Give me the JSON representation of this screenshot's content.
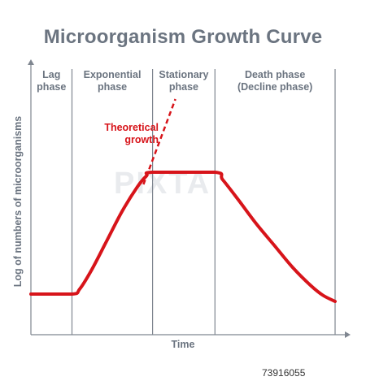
{
  "title": "Microorganism Growth Curve",
  "watermark": "PIXTA",
  "stock_id": "73916055",
  "colors": {
    "curve": "#d7141a",
    "text": "#6b7480",
    "axis": "#7f8690"
  },
  "chart_data": {
    "type": "line",
    "title": "Microorganism Growth Curve",
    "xlabel": "Time",
    "ylabel": "Log of numbers of microorganisms",
    "xlim": [
      0,
      100
    ],
    "ylim": [
      0,
      100
    ],
    "grid": false,
    "phases": [
      {
        "lines": [
          "Lag",
          "phase"
        ],
        "start": 0,
        "end": 13.5
      },
      {
        "lines": [
          "Exponential",
          "phase"
        ],
        "start": 13.5,
        "end": 40
      },
      {
        "lines": [
          "Stationary",
          "phase"
        ],
        "start": 40,
        "end": 60.5
      },
      {
        "lines": [
          "Death phase",
          "(Decline phase)"
        ],
        "start": 60.5,
        "end": 100
      }
    ],
    "series": [
      {
        "values": [
          [
            0,
            14
          ],
          [
            13.5,
            14
          ],
          [
            16,
            16
          ],
          [
            20,
            24
          ],
          [
            25,
            36
          ],
          [
            30,
            48
          ],
          [
            35,
            58
          ],
          [
            38,
            62.5
          ],
          [
            40,
            64
          ],
          [
            60.5,
            64
          ],
          [
            63,
            61
          ],
          [
            68,
            53
          ],
          [
            74,
            43
          ],
          [
            80,
            34
          ],
          [
            86,
            25
          ],
          [
            92,
            17.5
          ],
          [
            96,
            13.5
          ],
          [
            100,
            11
          ]
        ]
      }
    ],
    "theoretical": {
      "values": [
        [
          37,
          59
        ],
        [
          47.5,
          94
        ]
      ]
    },
    "annotations": [
      {
        "lines": [
          "Theoretical",
          "growth"
        ]
      }
    ]
  }
}
